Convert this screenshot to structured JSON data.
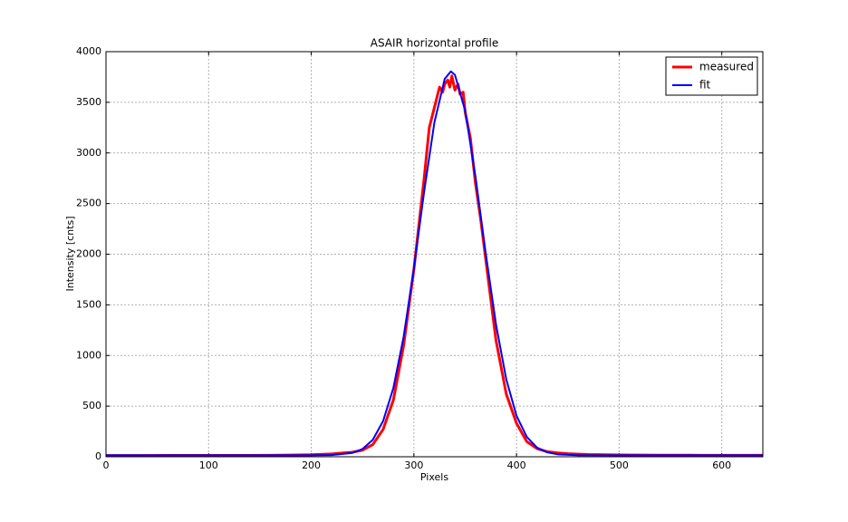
{
  "chart_data": {
    "type": "line",
    "title": "ASAIR horizontal profile",
    "xlabel": "Pixels",
    "ylabel": "Intensity [cnts]",
    "xlim": [
      0,
      640
    ],
    "ylim": [
      0,
      4000
    ],
    "xticks": [
      0,
      100,
      200,
      300,
      400,
      500,
      600
    ],
    "yticks": [
      0,
      500,
      1000,
      1500,
      2000,
      2500,
      3000,
      3500,
      4000
    ],
    "grid": true,
    "legend": "upper right",
    "series": [
      {
        "name": "measured",
        "color": "#ff0000",
        "x": [
          0,
          20,
          40,
          60,
          80,
          100,
          120,
          140,
          160,
          180,
          200,
          220,
          240,
          250,
          260,
          270,
          280,
          290,
          300,
          305,
          310,
          315,
          320,
          325,
          328,
          330,
          333,
          335,
          337,
          340,
          343,
          345,
          348,
          350,
          355,
          360,
          365,
          370,
          375,
          380,
          390,
          400,
          410,
          420,
          430,
          440,
          450,
          470,
          500,
          540,
          580,
          620,
          640
        ],
        "values": [
          12,
          12,
          12,
          13,
          13,
          13,
          14,
          14,
          15,
          17,
          20,
          28,
          45,
          65,
          120,
          270,
          560,
          1100,
          1850,
          2300,
          2750,
          3250,
          3450,
          3650,
          3600,
          3680,
          3720,
          3650,
          3760,
          3620,
          3680,
          3580,
          3600,
          3400,
          3150,
          2700,
          2350,
          1950,
          1550,
          1150,
          620,
          330,
          150,
          80,
          50,
          38,
          30,
          22,
          18,
          16,
          15,
          15,
          15
        ]
      },
      {
        "name": "fit",
        "color": "#0000ff",
        "x": [
          0,
          40,
          80,
          120,
          160,
          200,
          220,
          240,
          250,
          260,
          270,
          280,
          290,
          300,
          310,
          320,
          330,
          336,
          340,
          350,
          360,
          370,
          380,
          390,
          400,
          410,
          420,
          430,
          440,
          460,
          500,
          560,
          640
        ],
        "values": [
          15,
          15,
          15,
          15,
          15,
          15,
          17,
          38,
          77,
          168,
          352,
          679,
          1185,
          1860,
          2618,
          3302,
          3730,
          3805,
          3771,
          3415,
          2767,
          2009,
          1307,
          765,
          404,
          196,
          90,
          43,
          24,
          15,
          15,
          15,
          15
        ]
      }
    ]
  }
}
